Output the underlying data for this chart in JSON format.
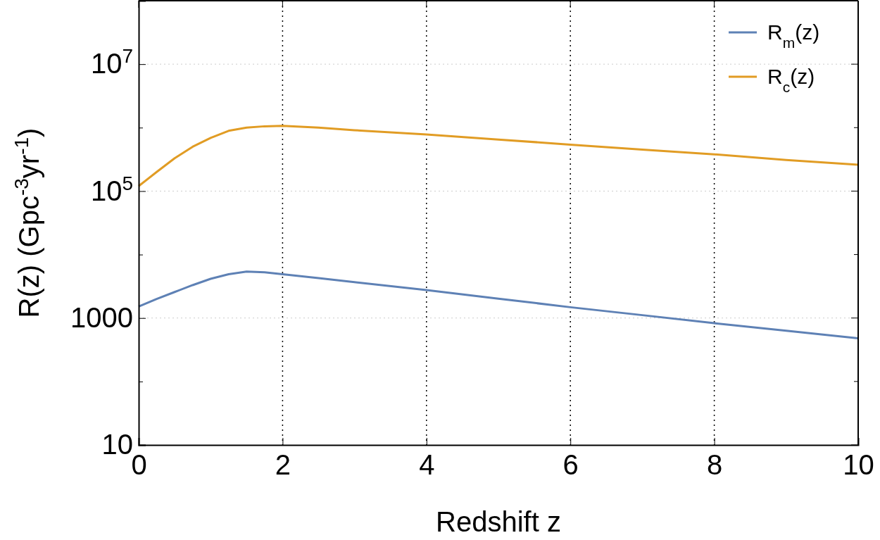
{
  "chart_data": {
    "type": "line",
    "xlabel": "Redshift z",
    "ylabel": "R(z) (Gpc$^{-3}$yr$^{-1}$)",
    "log": "y",
    "grid": true,
    "legend": "top right",
    "line_style": "solid",
    "marker": "none",
    "x": [
      0,
      0.25,
      0.5,
      0.75,
      1,
      1.25,
      1.5,
      1.75,
      2,
      2.5,
      3,
      4,
      5,
      6,
      7,
      8,
      9,
      10
    ],
    "xlim": [
      0,
      10
    ],
    "xticks": [
      0,
      2,
      4,
      6,
      8,
      10
    ],
    "ylim": [
      10,
      100000000
    ],
    "yticks": [
      10,
      {
        "value": 100,
        "label": null
      },
      1000,
      {
        "value": 10000,
        "label": null
      },
      {
        "value": 100000,
        "label": "10$^{5}$"
      },
      {
        "value": 1000000,
        "label": null
      },
      {
        "value": 10000000,
        "label": "10$^{7}$"
      }
    ],
    "series": [
      {
        "name": "R$_{m}$(z)",
        "color": "#5e81b5",
        "values": [
          1520,
          2000,
          2570,
          3300,
          4150,
          4900,
          5400,
          5250,
          4900,
          4250,
          3670,
          2750,
          2020,
          1480,
          1110,
          830,
          630,
          480
        ]
      },
      {
        "name": "R$_{c}$(z)",
        "color": "#e19c24",
        "values": [
          120000,
          200000,
          330000,
          500000,
          690000,
          890000,
          1000000,
          1050000,
          1070000,
          1000000,
          910000,
          780000,
          650000,
          540000,
          450000,
          380000,
          310000,
          260000
        ]
      }
    ]
  }
}
